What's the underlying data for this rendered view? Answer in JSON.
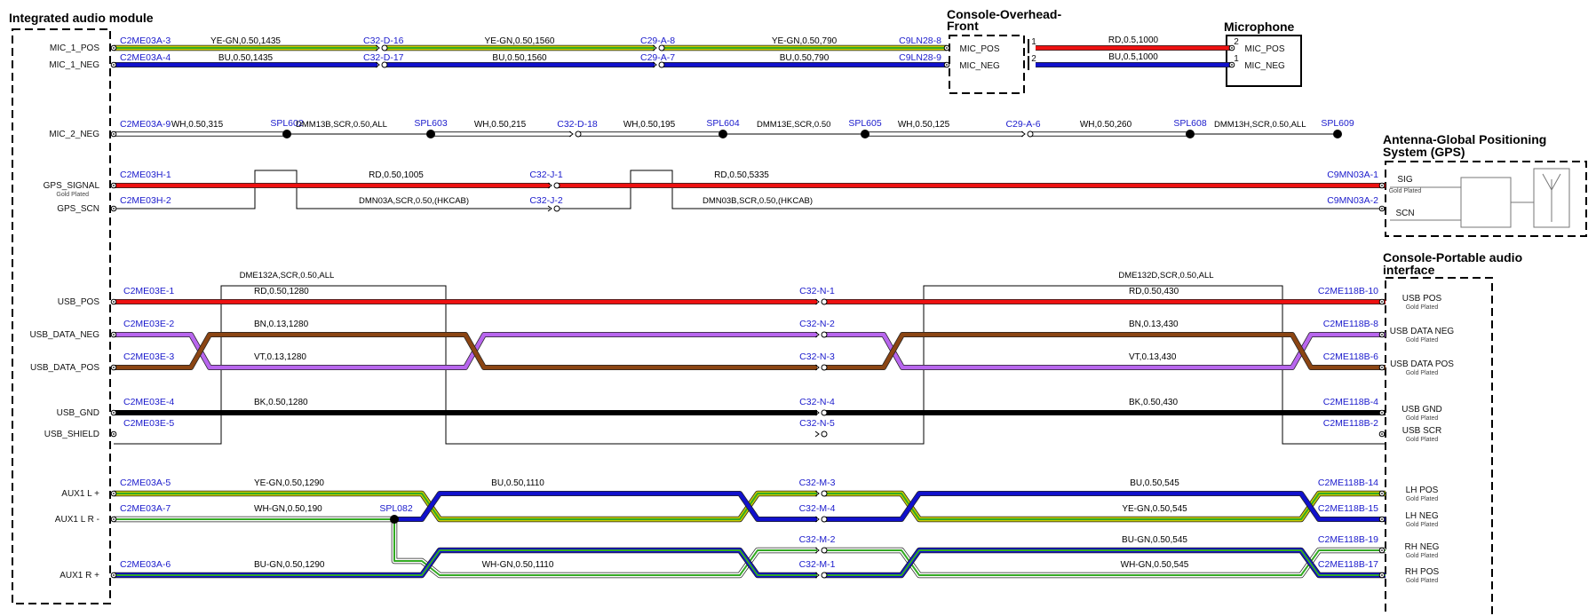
{
  "colors": {
    "RD": "#ee1111",
    "BU": "#1111cc",
    "YE": "#cccc00",
    "GN": "#33aa22",
    "WH": "#ffffff",
    "BN": "#8b4513",
    "VT": "#b866ee",
    "BK": "#000000",
    "conn_text": "#1a1acc"
  },
  "titles": {
    "module": "Integrated audio module",
    "console_overhead_1": "Console-Overhead-",
    "console_overhead_2": "Front",
    "microphone": "Microphone",
    "gps_1": "Antenna-Global Positioning",
    "gps_2": "System (GPS)",
    "portable_1": "Console-Portable audio",
    "portable_2": "interface"
  },
  "left_pins": [
    {
      "label": "MIC_1_POS"
    },
    {
      "label": "MIC_1_NEG"
    },
    {
      "label": "MIC_2_NEG"
    },
    {
      "label": "GPS_SIGNAL",
      "sub": "Gold Plated"
    },
    {
      "label": "GPS_SCN"
    },
    {
      "label": "USB_POS"
    },
    {
      "label": "USB_DATA_NEG"
    },
    {
      "label": "USB_DATA_POS"
    },
    {
      "label": "USB_GND"
    },
    {
      "label": "USB_SHIELD"
    },
    {
      "label": "AUX1 L +"
    },
    {
      "label": "AUX1 L R -"
    },
    {
      "label": "AUX1 R +"
    }
  ],
  "mic": {
    "wires": [
      {
        "segments": [
          {
            "from": "C2ME03A-3",
            "wire": "YE-GN,0.50,1435",
            "colors": [
              "YE",
              "GN"
            ]
          },
          {
            "from": "C32-D-16",
            "wire": "YE-GN,0.50,1560",
            "colors": [
              "YE",
              "GN"
            ]
          },
          {
            "from": "C29-A-8",
            "wire": "YE-GN,0.50,790",
            "colors": [
              "YE",
              "GN"
            ]
          }
        ],
        "end": "C9LN28-8"
      },
      {
        "segments": [
          {
            "from": "C2ME03A-4",
            "wire": "BU,0.50,1435",
            "colors": [
              "BU"
            ]
          },
          {
            "from": "C32-D-17",
            "wire": "BU,0.50,1560",
            "colors": [
              "BU"
            ]
          },
          {
            "from": "C29-A-7",
            "wire": "BU,0.50,790",
            "colors": [
              "BU"
            ]
          }
        ],
        "end": "C9LN28-9"
      }
    ],
    "overhead_pins": [
      "MIC_POS",
      "MIC_NEG"
    ],
    "overhead_pin_nums": [
      "1",
      "2"
    ],
    "links": [
      {
        "wire": "RD,0.5,1000",
        "colors": [
          "RD"
        ]
      },
      {
        "wire": "BU,0.5,1000",
        "colors": [
          "BU"
        ]
      }
    ],
    "mic_pins": [
      "MIC_POS",
      "MIC_NEG"
    ],
    "mic_pin_nums": [
      "2",
      "1"
    ]
  },
  "mic2": {
    "start": "C2ME03A-9",
    "splices": [
      "SPL602",
      "SPL603",
      "SPL604",
      "SPL605",
      "SPL608",
      "SPL609"
    ],
    "connectors": [
      "C32-D-18",
      "C29-A-6"
    ],
    "wires": [
      "WH,0.50,315",
      "WH,0.50,215",
      "WH,0.50,195",
      "WH,0.50,125",
      "WH,0.50,260"
    ],
    "shields": [
      "DMM13B,SCR,0.50,ALL",
      "DMM13E,SCR,0.50",
      "DMM13H,SCR,0.50,ALL"
    ]
  },
  "gps": {
    "sig_start": "C2ME03H-1",
    "sig_mid": "C32-J-1",
    "sig_end": "C9MN03A-1",
    "sig_wires": [
      "RD,0.50,1005",
      "RD,0.50,5335"
    ],
    "scn_start": "C2ME03H-2",
    "scn_mid": "C32-J-2",
    "scn_end": "C9MN03A-2",
    "scn_labels": [
      "DMN03A,SCR,0.50,(HKCAB)",
      "DMN03B,SCR,0.50,(HKCAB)"
    ],
    "pins": [
      {
        "label": "SIG",
        "sub": "Gold Plated"
      },
      {
        "label": "SCN"
      }
    ]
  },
  "usb": {
    "shield_labels": [
      "DME132A,SCR,0.50,ALL",
      "DME132D,SCR,0.50,ALL"
    ],
    "rows": [
      {
        "start": "C2ME03E-1",
        "mid": "C32-N-1",
        "end": "C2ME118B-10",
        "wire1": "RD,0.50,1280",
        "wire2": "RD,0.50,430",
        "right": "USB POS",
        "sub": "Gold Plated"
      },
      {
        "start": "C2ME03E-2",
        "mid": "C32-N-2",
        "end": "C2ME118B-8",
        "wire1": "BN,0.13,1280",
        "wire2": "BN,0.13,430",
        "right": "USB DATA NEG",
        "sub": "Gold Plated"
      },
      {
        "start": "C2ME03E-3",
        "mid": "C32-N-3",
        "end": "C2ME118B-6",
        "wire1": "VT,0.13,1280",
        "wire2": "VT,0.13,430",
        "right": "USB DATA POS",
        "sub": "Gold Plated"
      },
      {
        "start": "C2ME03E-4",
        "mid": "C32-N-4",
        "end": "C2ME118B-4",
        "wire1": "BK,0.50,1280",
        "wire2": "BK,0.50,430",
        "right": "USB GND",
        "sub": "Gold Plated"
      },
      {
        "start": "C2ME03E-5",
        "mid": "C32-N-5",
        "end": "C2ME118B-2",
        "wire1": "",
        "wire2": "",
        "right": "USB SCR",
        "sub": "Gold Plated"
      }
    ]
  },
  "aux": {
    "rows": [
      {
        "start": "C2ME03A-5",
        "wire1": "YE-GN,0.50,1290"
      },
      {
        "start": "C2ME03A-7",
        "wire1": "WH-GN,0.50,190"
      },
      {
        "start": "C2ME03A-6",
        "wire1": "BU-GN,0.50,1290"
      }
    ],
    "splice": "SPL082",
    "mid_wires": [
      "BU,0.50,1110",
      "WH-GN,0.50,1110"
    ],
    "mids": [
      "C32-M-3",
      "C32-M-4",
      "C32-M-2",
      "C32-M-1"
    ],
    "right_wires": [
      "BU,0.50,545",
      "YE-GN,0.50,545",
      "BU-GN,0.50,545",
      "WH-GN,0.50,545"
    ],
    "ends": [
      "C2ME118B-14",
      "C2ME118B-15",
      "C2ME118B-19",
      "C2ME118B-17"
    ],
    "right_pins": [
      {
        "label": "LH POS",
        "sub": "Gold Plated"
      },
      {
        "label": "LH NEG",
        "sub": "Gold Plated"
      },
      {
        "label": "RH NEG",
        "sub": "Gold Plated"
      },
      {
        "label": "RH POS",
        "sub": "Gold Plated"
      }
    ]
  }
}
